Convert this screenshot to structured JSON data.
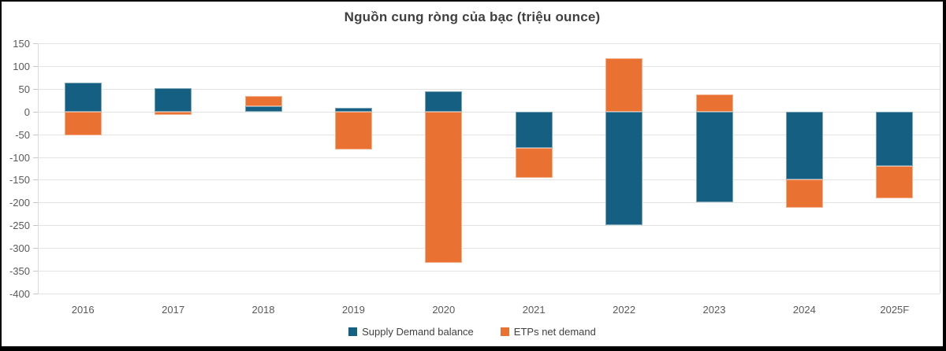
{
  "frame": {
    "background_color": "#FFFFFF",
    "border_color": "#000000"
  },
  "chart_data": {
    "type": "bar",
    "stacked": true,
    "title": "Nguồn cung ròng của bạc (triệu ounce)",
    "categories": [
      "2016",
      "2017",
      "2018",
      "2019",
      "2020",
      "2021",
      "2022",
      "2023",
      "2024",
      "2025F"
    ],
    "series": [
      {
        "name": "Supply Demand balance",
        "color": "#156082",
        "values": [
          63,
          52,
          12,
          9,
          45,
          -80,
          -250,
          -200,
          -150,
          -120
        ]
      },
      {
        "name": "ETPs net demand",
        "color": "#E97132",
        "values": [
          -53,
          -8,
          22,
          -83,
          -332,
          -65,
          117,
          37,
          -62,
          -70
        ]
      }
    ],
    "ylim": [
      -400,
      150
    ],
    "yticks": [
      150,
      100,
      50,
      0,
      -50,
      -100,
      -150,
      -200,
      -250,
      -300,
      -350,
      -400
    ],
    "xlabel": "",
    "ylabel": "",
    "grid": true,
    "legend_position": "bottom",
    "title_color": "#404040",
    "axis_label_color": "#595959",
    "gridline_color": "#E3E3E3"
  }
}
